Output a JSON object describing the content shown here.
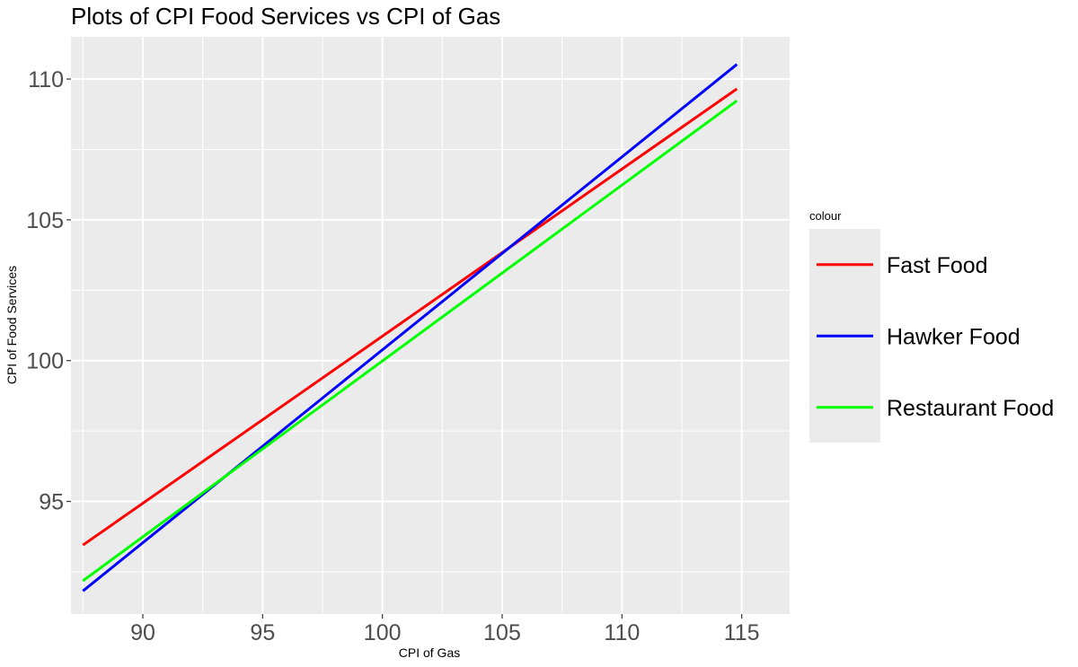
{
  "chart_data": {
    "type": "line",
    "title": "Plots of CPI Food Services vs CPI of Gas",
    "xlabel": "CPI of Gas",
    "ylabel": "CPI of Food Services",
    "xlim": [
      87.0,
      117.0
    ],
    "ylim": [
      91.0,
      111.5
    ],
    "x_ticks": [
      90,
      95,
      100,
      105,
      110,
      115
    ],
    "y_ticks": [
      95,
      100,
      105,
      110
    ],
    "grid": true,
    "legend": {
      "title": "colour",
      "position": "right"
    },
    "series": [
      {
        "name": "Fast Food",
        "color": "#ff0000",
        "x": [
          87.5,
          114.8
        ],
        "y": [
          93.45,
          109.65
        ]
      },
      {
        "name": "Hawker Food",
        "color": "#0000ff",
        "x": [
          87.5,
          114.8
        ],
        "y": [
          91.82,
          110.52
        ]
      },
      {
        "name": "Restaurant Food",
        "color": "#00ff00",
        "x": [
          87.5,
          114.8
        ],
        "y": [
          92.18,
          109.23
        ]
      }
    ]
  }
}
